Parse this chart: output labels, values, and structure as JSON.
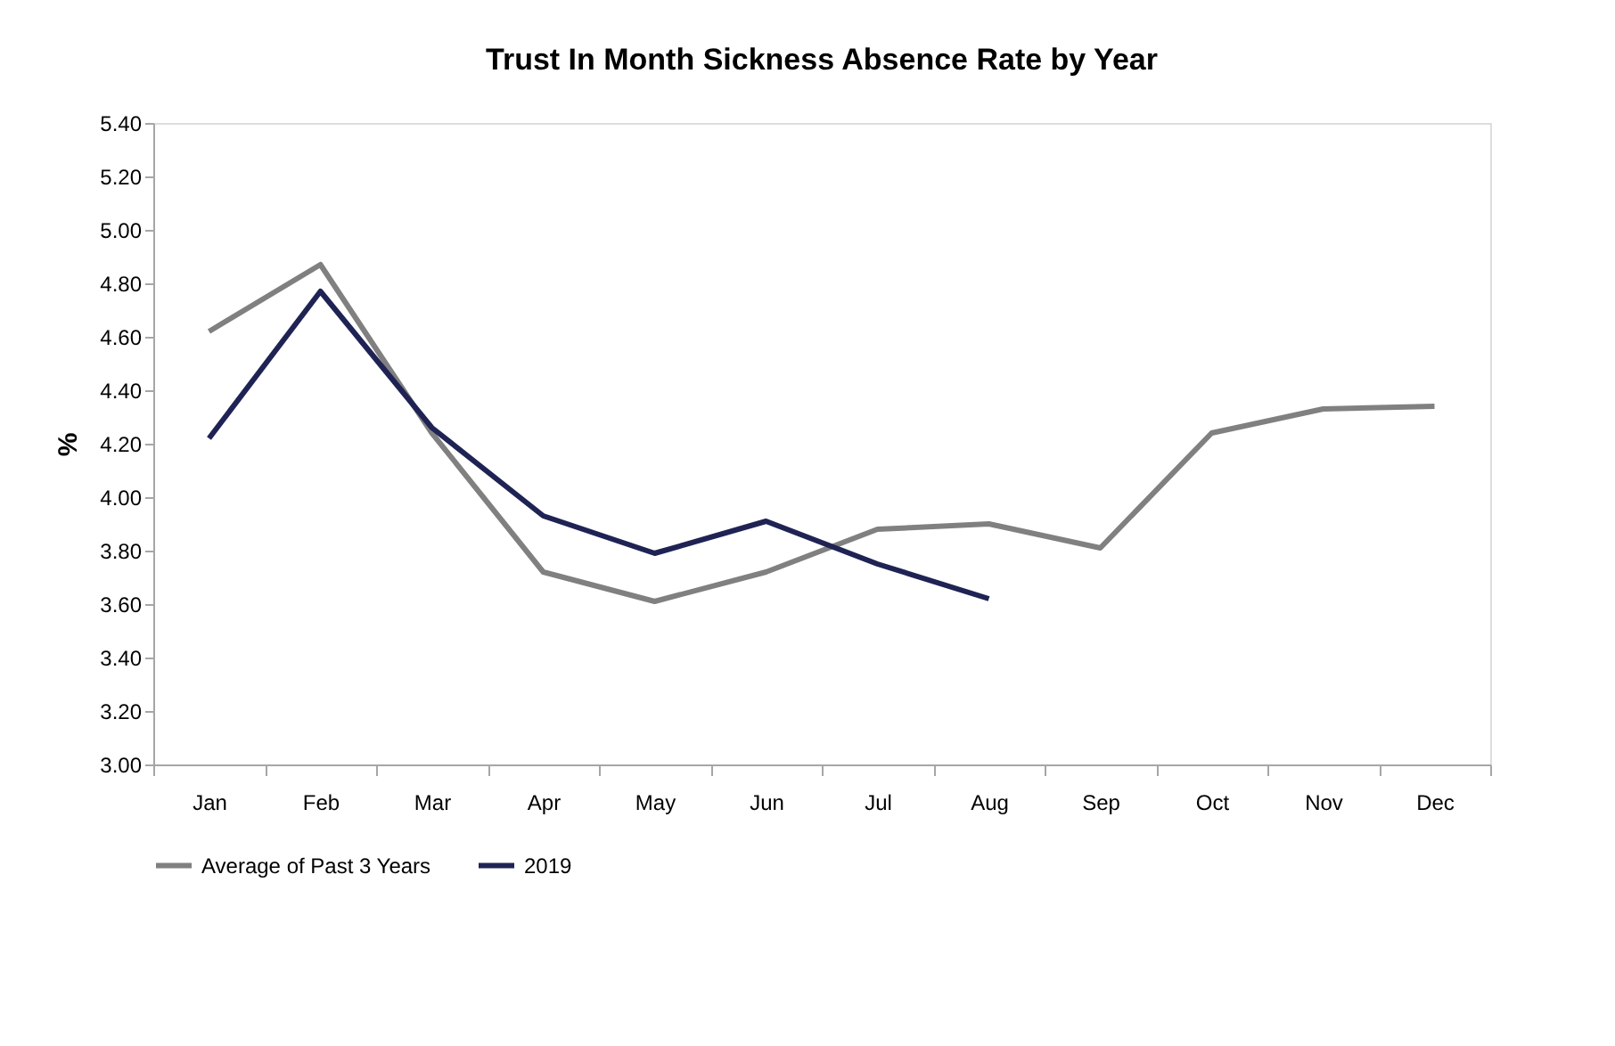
{
  "chart_data": {
    "type": "line",
    "title": "Trust In Month Sickness Absence Rate by Year",
    "ylabel": "%",
    "categories": [
      "Jan",
      "Feb",
      "Mar",
      "Apr",
      "May",
      "Jun",
      "Jul",
      "Aug",
      "Sep",
      "Oct",
      "Nov",
      "Dec"
    ],
    "series": [
      {
        "name": "Average of Past 3 Years",
        "color": "#808080",
        "values": [
          4.62,
          4.87,
          4.24,
          3.72,
          3.61,
          3.72,
          3.88,
          3.9,
          3.81,
          4.24,
          4.33,
          4.34
        ]
      },
      {
        "name": "2019",
        "color": "#1f2354",
        "values": [
          4.22,
          4.77,
          4.26,
          3.93,
          3.79,
          3.91,
          3.75,
          3.62,
          null,
          null,
          null,
          null
        ]
      }
    ],
    "ylim": [
      3.0,
      5.4
    ],
    "yticks": [
      {
        "value": 3.0,
        "label": "3.00"
      },
      {
        "value": 3.2,
        "label": "3.20"
      },
      {
        "value": 3.4,
        "label": "3.40"
      },
      {
        "value": 3.6,
        "label": "3.60"
      },
      {
        "value": 3.8,
        "label": "3.80"
      },
      {
        "value": 4.0,
        "label": "4.00"
      },
      {
        "value": 4.2,
        "label": "4.20"
      },
      {
        "value": 4.4,
        "label": "4.40"
      },
      {
        "value": 4.6,
        "label": "4.60"
      },
      {
        "value": 4.8,
        "label": "4.80"
      },
      {
        "value": 5.0,
        "label": "5.00"
      },
      {
        "value": 5.2,
        "label": "5.20"
      },
      {
        "value": 5.4,
        "label": "5.40"
      }
    ],
    "grid": false,
    "legend": "bottom",
    "marker": "none",
    "line_style": "solid"
  }
}
